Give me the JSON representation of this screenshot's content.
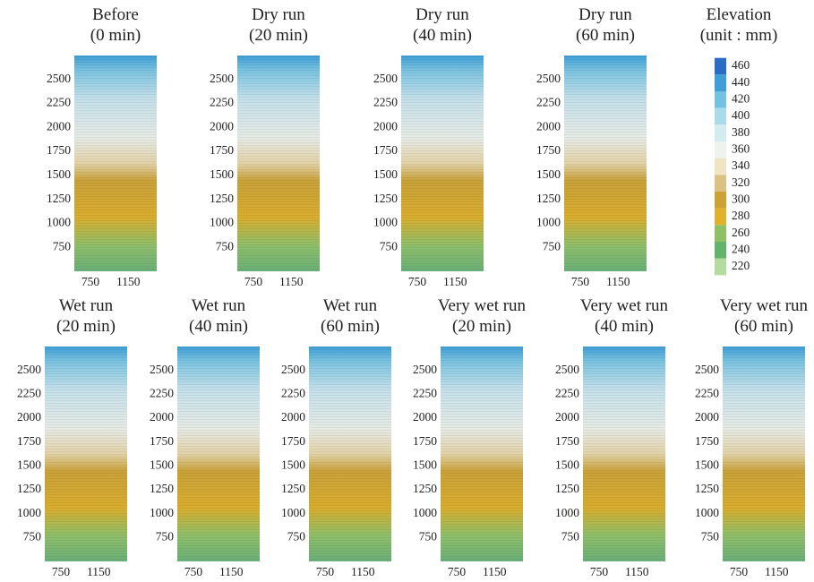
{
  "chart_data": [
    {
      "type": "heatmap",
      "title": "Before",
      "subtitle": "(0 min)",
      "xlim": [
        580,
        1450
      ],
      "ylim": [
        500,
        2750
      ],
      "xticks": [
        750,
        1150
      ],
      "yticks": [
        750,
        1000,
        1250,
        1500,
        1750,
        2000,
        2250,
        2500
      ]
    },
    {
      "type": "heatmap",
      "title": "Dry run",
      "subtitle": "(20 min)",
      "xlim": [
        580,
        1450
      ],
      "ylim": [
        500,
        2750
      ],
      "xticks": [
        750,
        1150
      ],
      "yticks": [
        750,
        1000,
        1250,
        1500,
        1750,
        2000,
        2250,
        2500
      ]
    },
    {
      "type": "heatmap",
      "title": "Dry run",
      "subtitle": "(40 min)",
      "xlim": [
        580,
        1450
      ],
      "ylim": [
        500,
        2750
      ],
      "xticks": [
        750,
        1150
      ],
      "yticks": [
        750,
        1000,
        1250,
        1500,
        1750,
        2000,
        2250,
        2500
      ]
    },
    {
      "type": "heatmap",
      "title": "Dry run",
      "subtitle": "(60 min)",
      "xlim": [
        580,
        1450
      ],
      "ylim": [
        500,
        2750
      ],
      "xticks": [
        750,
        1150
      ],
      "yticks": [
        750,
        1000,
        1250,
        1500,
        1750,
        2000,
        2250,
        2500
      ]
    },
    {
      "type": "heatmap",
      "title": "Wet run",
      "subtitle": "(20 min)",
      "xlim": [
        580,
        1450
      ],
      "ylim": [
        500,
        2750
      ],
      "xticks": [
        750,
        1150
      ],
      "yticks": [
        750,
        1000,
        1250,
        1500,
        1750,
        2000,
        2250,
        2500
      ]
    },
    {
      "type": "heatmap",
      "title": "Wet run",
      "subtitle": "(40 min)",
      "xlim": [
        580,
        1450
      ],
      "ylim": [
        500,
        2750
      ],
      "xticks": [
        750,
        1150
      ],
      "yticks": [
        750,
        1000,
        1250,
        1500,
        1750,
        2000,
        2250,
        2500
      ]
    },
    {
      "type": "heatmap",
      "title": "Wet run",
      "subtitle": "(60 min)",
      "xlim": [
        580,
        1450
      ],
      "ylim": [
        500,
        2750
      ],
      "xticks": [
        750,
        1150
      ],
      "yticks": [
        750,
        1000,
        1250,
        1500,
        1750,
        2000,
        2250,
        2500
      ]
    },
    {
      "type": "heatmap",
      "title": "Very wet run",
      "subtitle": "(20 min)",
      "xlim": [
        580,
        1450
      ],
      "ylim": [
        500,
        2750
      ],
      "xticks": [
        750,
        1150
      ],
      "yticks": [
        750,
        1000,
        1250,
        1500,
        1750,
        2000,
        2250,
        2500
      ]
    },
    {
      "type": "heatmap",
      "title": "Very wet run",
      "subtitle": "(40 min)",
      "xlim": [
        580,
        1450
      ],
      "ylim": [
        500,
        2750
      ],
      "xticks": [
        750,
        1150
      ],
      "yticks": [
        750,
        1000,
        1250,
        1500,
        1750,
        2000,
        2250,
        2500
      ]
    },
    {
      "type": "heatmap",
      "title": "Very wet run",
      "subtitle": "(60 min)",
      "xlim": [
        580,
        1450
      ],
      "ylim": [
        500,
        2750
      ],
      "xticks": [
        750,
        1150
      ],
      "yticks": [
        750,
        1000,
        1250,
        1500,
        1750,
        2000,
        2250,
        2500
      ]
    },
    {
      "type": "colorbar",
      "title": "Elevation",
      "subtitle": "(unit : mm)",
      "ticks": [
        460,
        440,
        420,
        400,
        380,
        360,
        340,
        320,
        300,
        280,
        260,
        240,
        220
      ],
      "colors": [
        "#2b6cc4",
        "#3f9fd6",
        "#73c2e2",
        "#a9dbeb",
        "#d3ecf0",
        "#eef3ee",
        "#f0e4c4",
        "#dcc184",
        "#c9a336",
        "#e0b12a",
        "#8fc164",
        "#62b36c",
        "#b5dba0"
      ]
    }
  ]
}
